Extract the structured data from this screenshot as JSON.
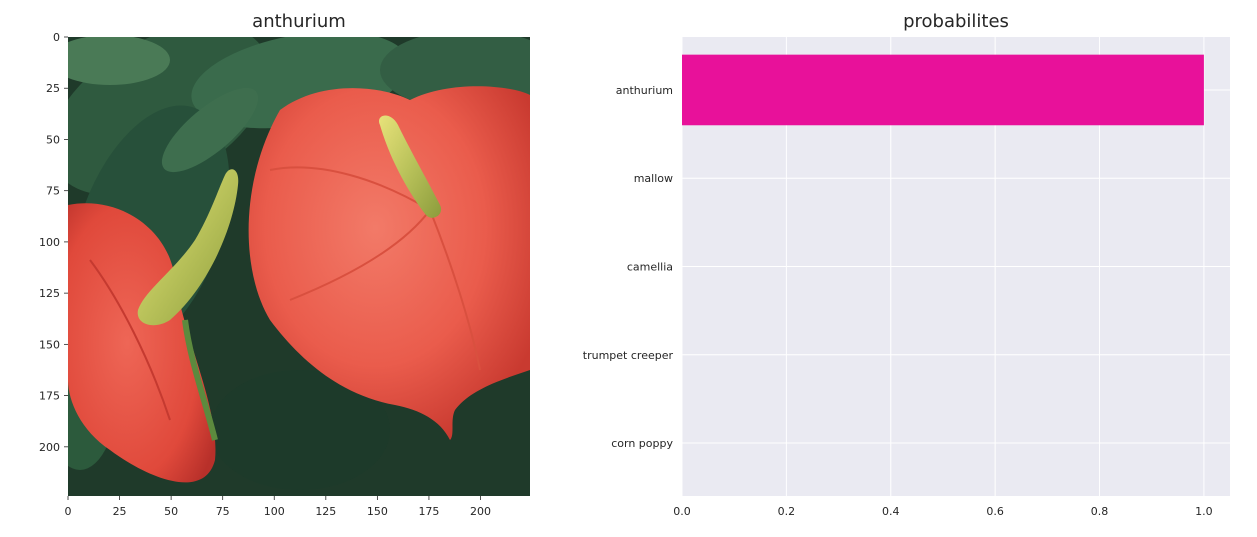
{
  "chart_data": [
    {
      "type": "image",
      "title": "anthurium",
      "image": "red-anthurium-flowers-photo",
      "xticks": [
        0,
        25,
        50,
        75,
        100,
        125,
        150,
        175,
        200
      ],
      "yticks": [
        0,
        25,
        50,
        75,
        100,
        125,
        150,
        175,
        200
      ],
      "xlim": [
        0,
        224
      ],
      "ylim": [
        224,
        0
      ]
    },
    {
      "type": "bar",
      "orientation": "horizontal",
      "title": "probabilites",
      "categories": [
        "anthurium",
        "mallow",
        "camellia",
        "trumpet creeper",
        "corn poppy"
      ],
      "values": [
        1.0,
        0.0,
        0.0,
        0.0,
        0.0
      ],
      "xlim": [
        0,
        1.05
      ],
      "xticks": [
        "0.0",
        "0.2",
        "0.4",
        "0.6",
        "0.8",
        "1.0"
      ],
      "bar_color": "#e8119a",
      "background": "#eaeaf2",
      "grid": true
    }
  ]
}
